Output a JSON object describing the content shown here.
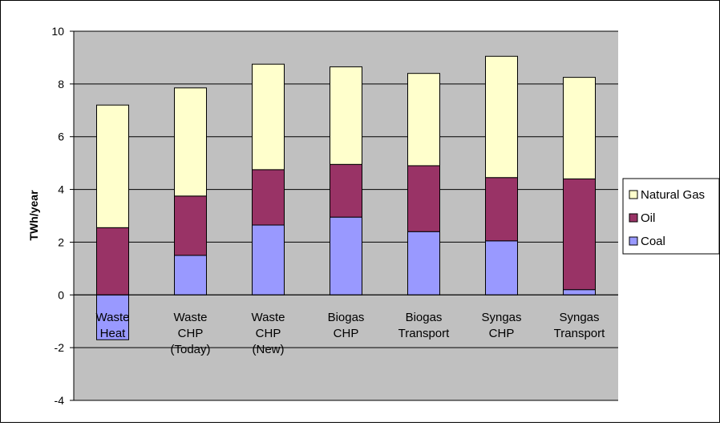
{
  "chart_data": {
    "type": "bar",
    "stacked": true,
    "categories": [
      [
        "Waste",
        "Heat"
      ],
      [
        "Waste",
        "CHP",
        "(Today)"
      ],
      [
        "Waste",
        "CHP",
        "(New)"
      ],
      [
        "Biogas",
        "CHP"
      ],
      [
        "Biogas",
        "Transport"
      ],
      [
        "Syngas",
        "CHP"
      ],
      [
        "Syngas",
        "Transport"
      ]
    ],
    "series": [
      {
        "name": "Coal",
        "color": "#9999ff",
        "values": [
          -1.7,
          1.5,
          2.65,
          2.95,
          2.4,
          2.05,
          0.2
        ]
      },
      {
        "name": "Oil",
        "color": "#993366",
        "values": [
          2.55,
          2.25,
          2.1,
          2.0,
          2.5,
          2.4,
          4.2
        ]
      },
      {
        "name": "Natural Gas",
        "color": "#ffffcc",
        "values": [
          4.65,
          4.1,
          4.0,
          3.7,
          3.5,
          4.6,
          3.85
        ]
      }
    ],
    "ylabel": "TWh/year",
    "xlabel": "",
    "title": "",
    "ylim": [
      -4,
      10
    ],
    "yticks": [
      "10",
      "8",
      "6",
      "4",
      "2",
      "0",
      "-2",
      "-4"
    ],
    "ytick_values": [
      10,
      8,
      6,
      4,
      2,
      0,
      -2,
      -4
    ],
    "legend": {
      "position": "right",
      "entries": [
        "Natural Gas",
        "Oil",
        "Coal"
      ]
    },
    "plot_background": "#c0c0c0",
    "grid": true
  }
}
